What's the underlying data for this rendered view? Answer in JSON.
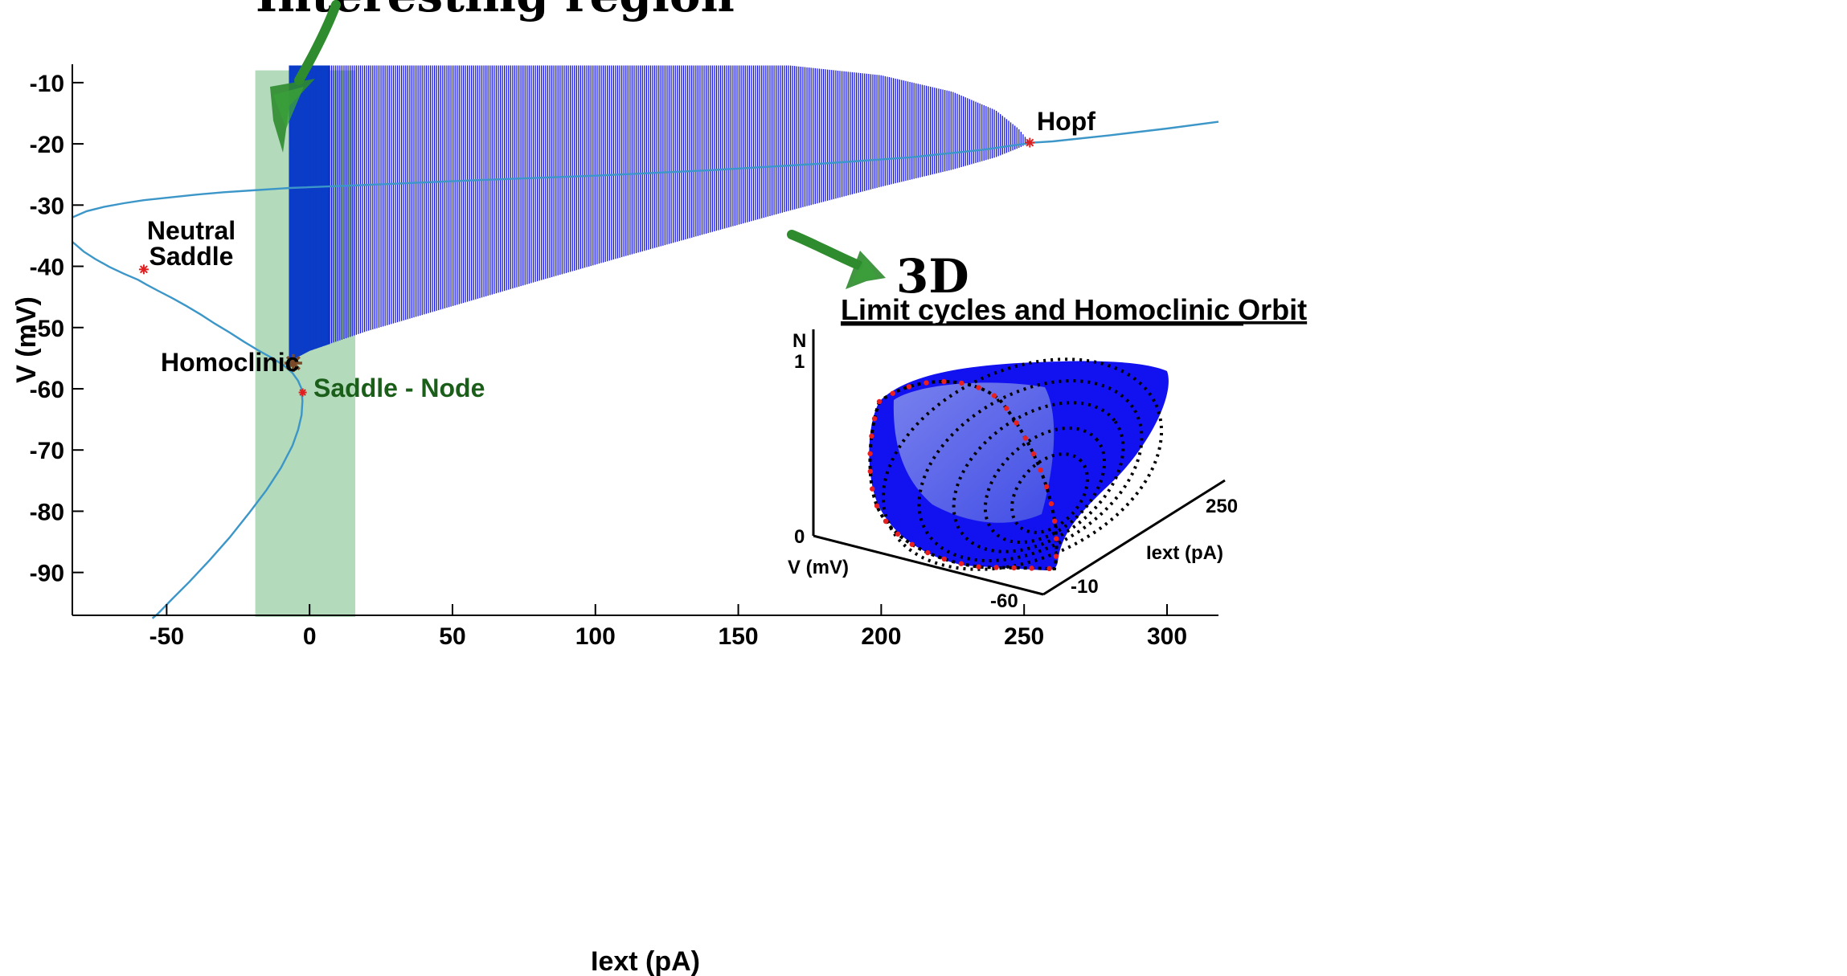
{
  "chart_data": {
    "type": "line",
    "title": "Interesting region",
    "xlabel": "Iext (pA)",
    "ylabel": "V (mV)",
    "xlim": [
      -83,
      318
    ],
    "ylim": [
      -97,
      -7
    ],
    "xticks": [
      -50,
      0,
      50,
      100,
      150,
      200,
      250,
      300
    ],
    "yticks": [
      -10,
      -20,
      -30,
      -40,
      -50,
      -60,
      -70,
      -80,
      -90
    ],
    "highlight_region": {
      "x_range": [
        -19,
        16
      ],
      "color": "#7ec28d"
    },
    "colors": {
      "curve": "#3c96c8",
      "cycles": "#1414e6",
      "cycles_dense": "#0a3cc8",
      "markers": "#e02020",
      "homoclinic_marker": "#7a4a28",
      "arrow": "#2e8b2e"
    },
    "series": [
      {
        "x": [
          -83,
          -79,
          -75,
          -70,
          -65,
          -60,
          -57,
          -53,
          -48,
          -43,
          -38,
          -33,
          -28,
          -23,
          -18,
          -13,
          -9,
          -6,
          -4,
          -2.8,
          -2.5,
          -2.8,
          -4,
          -6,
          -10,
          -15,
          -21,
          -28,
          -35,
          -42,
          -48,
          -53,
          -55
        ],
        "y": [
          -36.0,
          -37.6,
          -38.8,
          -40.1,
          -41.2,
          -42.2,
          -43.0,
          -44.0,
          -45.2,
          -46.5,
          -47.9,
          -49.4,
          -50.8,
          -52.3,
          -53.7,
          -55.0,
          -56.2,
          -57.4,
          -58.7,
          -60.0,
          -62.0,
          -64.3,
          -66.7,
          -69.3,
          -72.9,
          -76.5,
          -80.2,
          -84.3,
          -88.0,
          -91.5,
          -94.3,
          -96.7,
          -97.5
        ]
      },
      {
        "x": [
          -83,
          -78,
          -72,
          -65,
          -58,
          -50,
          -40,
          -30,
          -20,
          -10,
          -7,
          20,
          60,
          100,
          140,
          180,
          210,
          235,
          250,
          253,
          260,
          280,
          300,
          318
        ],
        "y": [
          -32.0,
          -31.0,
          -30.3,
          -29.7,
          -29.2,
          -28.8,
          -28.3,
          -27.9,
          -27.6,
          -27.3,
          -27.2,
          -26.7,
          -25.9,
          -25.2,
          -24.3,
          -23.2,
          -22.2,
          -21.0,
          -20.0,
          -19.8,
          -19.6,
          -18.6,
          -17.5,
          -16.4
        ]
      }
    ],
    "limit_cycle_envelope": {
      "x": [
        -7,
        0,
        20,
        50,
        80,
        110,
        140,
        168,
        200,
        225,
        240,
        248,
        252
      ],
      "upper": [
        -7.2,
        -7.2,
        -7.2,
        -7.2,
        -7.2,
        -7.2,
        -7.2,
        -7.2,
        -8.8,
        -11.5,
        -14.5,
        -17.5,
        -19.8
      ],
      "lower": [
        -55.5,
        -53.8,
        -50.6,
        -46.5,
        -42.4,
        -38.4,
        -34.5,
        -30.9,
        -27.0,
        -24.2,
        -22.2,
        -20.7,
        -19.8
      ]
    },
    "annotations": [
      {
        "lines": [
          "Neutral",
          "Saddle"
        ],
        "x": -58,
        "y": -40.5
      },
      {
        "text": "Homoclinic",
        "x": -5.7,
        "y": -55.8
      },
      {
        "text": "Saddle - Node",
        "x": -2.4,
        "y": -60.6
      },
      {
        "text": "Hopf",
        "x": 252,
        "y": -19.8
      }
    ]
  },
  "inset": {
    "title_prefix": "3D",
    "title": "Limit cycles and Homoclinic Orbit",
    "axis_labels": {
      "n": "N",
      "v": "V (mV)",
      "iext": "Iext (pA)"
    },
    "ticks": {
      "n_top": "1",
      "n_bottom": "0",
      "iext_hi": "250",
      "iext_lo": "-10",
      "v_lo": "-60"
    },
    "colors": {
      "surface": "#1010f0",
      "surface_light": "#6f7ae8",
      "orbit": "#000000",
      "points": "#e82020"
    }
  }
}
